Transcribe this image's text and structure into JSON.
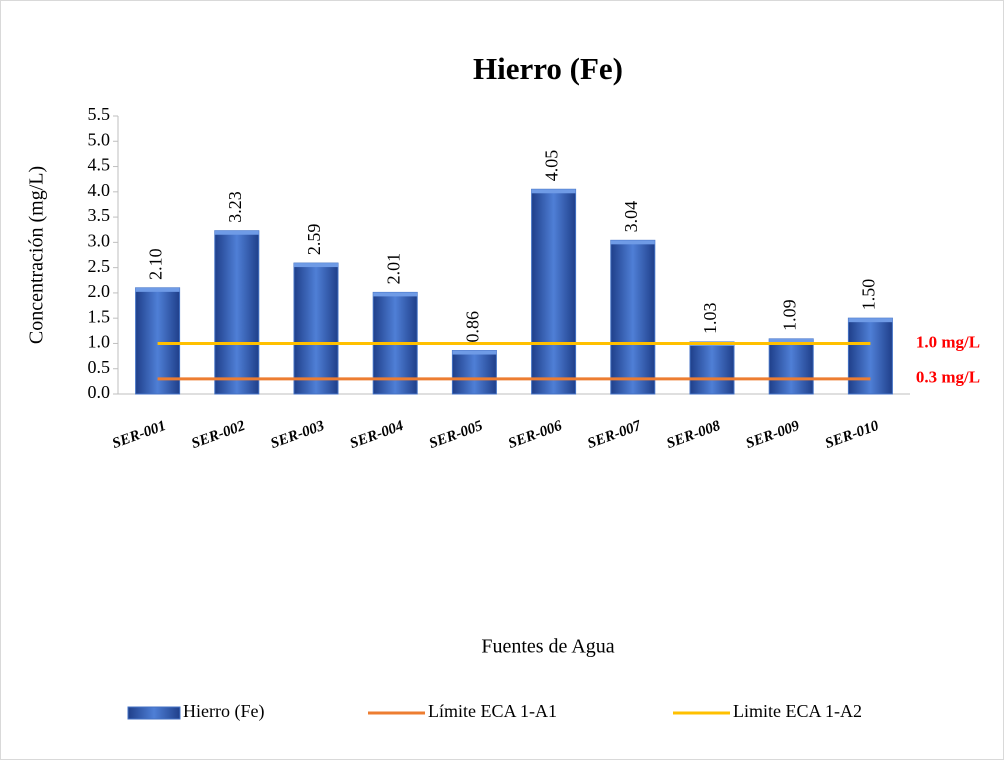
{
  "chart_data": {
    "type": "bar",
    "title": "Hierro (Fe)",
    "y_label": "Concentración (mg/L)",
    "x_label": "Fuentes de Agua",
    "categories": [
      "SER-001",
      "SER-002",
      "SER-003",
      "SER-004",
      "SER-005",
      "SER-006",
      "SER-007",
      "SER-008",
      "SER-009",
      "SER-010"
    ],
    "series": [
      {
        "name": "Hierro (Fe)",
        "color": "#4472c4",
        "type": "bar",
        "values": [
          2.1,
          3.23,
          2.59,
          2.01,
          0.86,
          4.05,
          3.04,
          1.03,
          1.09,
          1.5
        ],
        "value_labels": [
          "2.10",
          "3.23",
          "2.59",
          "2.01",
          "0.86",
          "4.05",
          "3.04",
          "1.03",
          "1.09",
          "1.50"
        ]
      },
      {
        "name": "Límite ECA 1-A1",
        "color": "#ed7d31",
        "type": "line",
        "values": [
          0.3,
          0.3,
          0.3,
          0.3,
          0.3,
          0.3,
          0.3,
          0.3,
          0.3,
          0.3
        ]
      },
      {
        "name": "Limite ECA 1-A2",
        "color": "#ffc000",
        "type": "line",
        "values": [
          1,
          1,
          1,
          1,
          1,
          1,
          1,
          1,
          1,
          1
        ]
      }
    ],
    "annotations": [
      {
        "text": "1.0 mg/L",
        "y": 1
      },
      {
        "text": "0.3 mg/L",
        "y": 0.3
      }
    ],
    "ylim": [
      0,
      5.5
    ],
    "yticks": [
      {
        "value": 0,
        "label": "0.0"
      },
      0.5,
      {
        "value": 1,
        "label": "1.0"
      },
      1.5,
      {
        "value": 2,
        "label": "2.0"
      },
      2.5,
      {
        "value": 3,
        "label": "3.0"
      },
      3.5,
      {
        "value": 4,
        "label": "4.0"
      },
      4.5,
      {
        "value": 5,
        "label": "5.0"
      },
      5.5
    ],
    "grid": false,
    "legend": "bottom"
  }
}
